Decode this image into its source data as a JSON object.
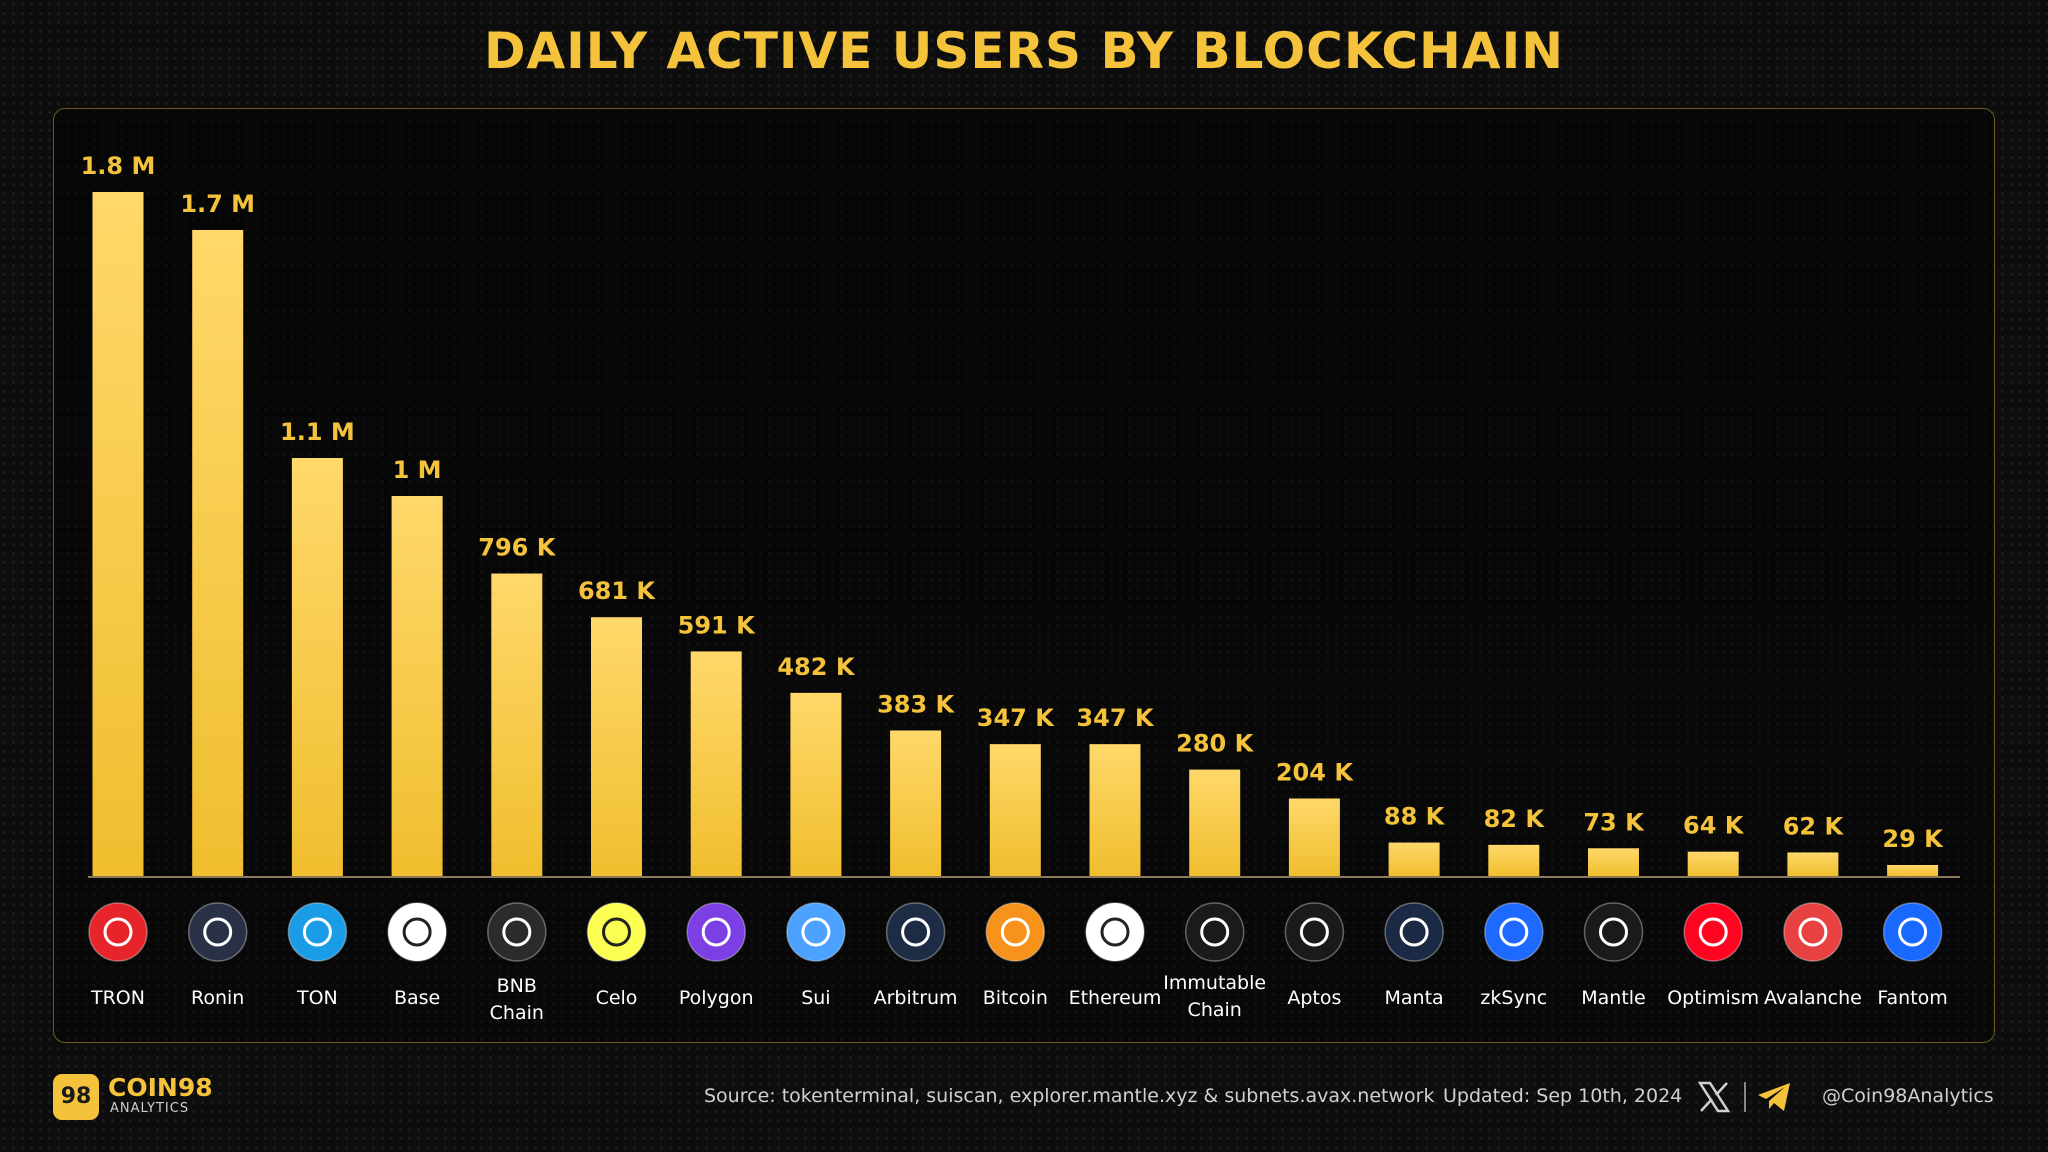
{
  "title": "DAILY ACTIVE USERS BY BLOCKCHAIN",
  "colors": {
    "accent": "#F5C33B",
    "background": "#0d0d0d"
  },
  "chart_data": {
    "type": "bar",
    "title": "DAILY ACTIVE USERS BY BLOCKCHAIN",
    "categories": [
      "TRON",
      "Ronin",
      "TON",
      "Base",
      "BNB Chain",
      "Celo",
      "Polygon",
      "Sui",
      "Arbitrum",
      "Bitcoin",
      "Ethereum",
      "Immutable Chain",
      "Aptos",
      "Manta",
      "zkSync",
      "Mantle",
      "Optimism",
      "Avalanche",
      "Fantom"
    ],
    "values": [
      1800000,
      1700000,
      1100000,
      1000000,
      796000,
      681000,
      591000,
      482000,
      383000,
      347000,
      347000,
      280000,
      204000,
      88000,
      82000,
      73000,
      64000,
      62000,
      29000
    ],
    "value_labels": [
      "1.8 M",
      "1.7 M",
      "1.1 M",
      "1 M",
      "796 K",
      "681 K",
      "591 K",
      "482 K",
      "383 K",
      "347 K",
      "347 K",
      "280 K",
      "204 K",
      "88 K",
      "82 K",
      "73 K",
      "64 K",
      "62 K",
      "29 K"
    ],
    "icons": [
      "tron-icon",
      "ronin-icon",
      "ton-icon",
      "base-icon",
      "bnb-chain-icon",
      "celo-icon",
      "polygon-icon",
      "sui-icon",
      "arbitrum-icon",
      "bitcoin-icon",
      "ethereum-icon",
      "immutable-chain-icon",
      "aptos-icon",
      "manta-icon",
      "zksync-icon",
      "mantle-icon",
      "optimism-icon",
      "avalanche-icon",
      "fantom-icon"
    ],
    "icon_colors": [
      "#E8242B",
      "#2a3147",
      "#1B9CE6",
      "#ffffff",
      "#2b2b2b",
      "#FCFF52",
      "#7B3FE4",
      "#4DA2FF",
      "#1d2c44",
      "#F7931A",
      "#ffffff",
      "#1a1a1a",
      "#1a1a1a",
      "#1a2a44",
      "#1E69FF",
      "#1a1a1a",
      "#FF0420",
      "#E84142",
      "#1969FF"
    ],
    "bar_color": "#F5C33B",
    "ylim": [
      0,
      1800000
    ],
    "xlabel": "",
    "ylabel": "",
    "grid": false
  },
  "footer": {
    "logo_text": "98",
    "brand": "COIN98",
    "brand_sub": "ANALYTICS",
    "source": "Source: tokenterminal, suiscan, explorer.mantle.xyz & subnets.avax.network",
    "updated": "Updated: Sep 10th, 2024",
    "handle": "@Coin98Analytics"
  }
}
